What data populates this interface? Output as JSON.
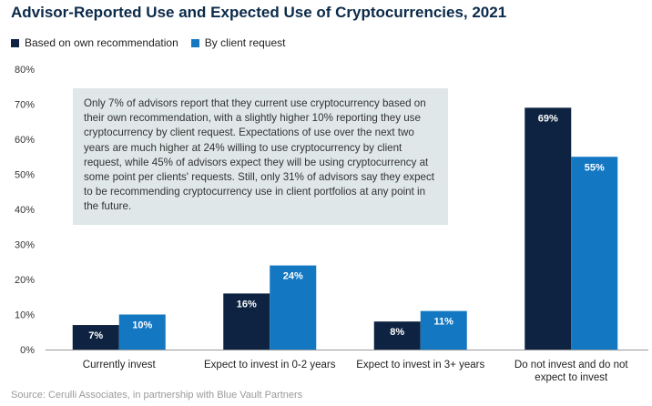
{
  "colors": {
    "own": "#0d2341",
    "client": "#1377c2",
    "note_bg": "#dfe7e8",
    "title": "#0b2a4a"
  },
  "chart_data": {
    "type": "bar",
    "title": "Advisor-Reported Use and Expected Use of Cryptocurrencies, 2021",
    "categories": [
      "Currently invest",
      "Expect to invest in 0-2 years",
      "Expect to invest in 3+ years",
      "Do not invest and do not expect to invest"
    ],
    "category_lines": [
      [
        "Currently invest"
      ],
      [
        "Expect to invest in 0-2 years"
      ],
      [
        "Expect to invest in 3+ years"
      ],
      [
        "Do not invest and do not",
        "expect to invest"
      ]
    ],
    "series": [
      {
        "name": "Based on own recommendation",
        "values": [
          7,
          16,
          8,
          69
        ],
        "labels": [
          "7%",
          "16%",
          "8%",
          "69%"
        ]
      },
      {
        "name": "By client request",
        "values": [
          10,
          24,
          11,
          55
        ],
        "labels": [
          "10%",
          "24%",
          "11%",
          "55%"
        ]
      }
    ],
    "ylim": [
      0,
      80
    ],
    "yticks": [
      0,
      10,
      20,
      30,
      40,
      50,
      60,
      70,
      80
    ],
    "ytick_labels": [
      "0%",
      "10%",
      "20%",
      "30%",
      "40%",
      "50%",
      "60%",
      "70%",
      "80%"
    ],
    "xlabel": "",
    "ylabel": "",
    "legend_position": "top-left",
    "grid": false
  },
  "annotation": "Only 7% of advisors report that they current use cryptocurrency based on their own recommendation, with a slightly higher 10% reporting they use cryptocurrency by client request. Expectations of use over the next two years are much higher at 24% willing to use cryptocurrency by client request, while 45% of advisors expect they will be using cryptocurrency at some point per clients' requests. Still, only 31% of advisors say they expect to be recommending cryptocurrency use in client portfolios at any point in the future.",
  "source": "Source: Cerulli Associates, in partnership with Blue Vault Partners"
}
